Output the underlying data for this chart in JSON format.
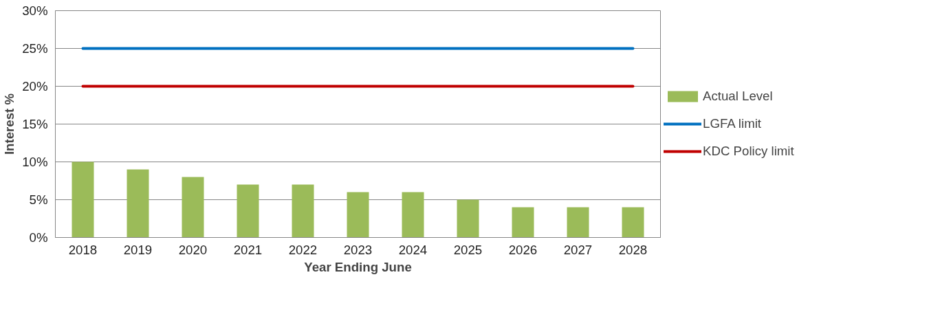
{
  "chart_data": {
    "type": "bar",
    "xlabel": "Year Ending June",
    "ylabel": "Interest %",
    "categories": [
      "2018",
      "2019",
      "2020",
      "2021",
      "2022",
      "2023",
      "2024",
      "2025",
      "2026",
      "2027",
      "2028"
    ],
    "series": [
      {
        "name": "Actual Level",
        "color": "#9bbb59",
        "values": [
          10,
          9,
          8,
          7,
          7,
          6,
          6,
          5,
          4,
          4,
          4
        ]
      },
      {
        "name": "LGFA limit",
        "type": "line",
        "color": "#0070c0",
        "values": [
          25,
          25,
          25,
          25,
          25,
          25,
          25,
          25,
          25,
          25,
          25
        ]
      },
      {
        "name": "KDC Policy limit",
        "type": "line",
        "color": "#c00000",
        "values": [
          20,
          20,
          20,
          20,
          20,
          20,
          20,
          20,
          20,
          20,
          20
        ]
      }
    ],
    "ylim": [
      0,
      30
    ],
    "yticks": [
      {
        "value": 0,
        "label": "0%"
      },
      {
        "value": 5,
        "label": "5%"
      },
      {
        "value": 10,
        "label": "10%"
      },
      {
        "value": 15,
        "label": "15%"
      },
      {
        "value": 20,
        "label": "20%"
      },
      {
        "value": 25,
        "label": "25%"
      },
      {
        "value": 30,
        "label": "30%"
      }
    ],
    "grid": "y",
    "legend": "right",
    "marker": "none",
    "line_style": "solid"
  }
}
